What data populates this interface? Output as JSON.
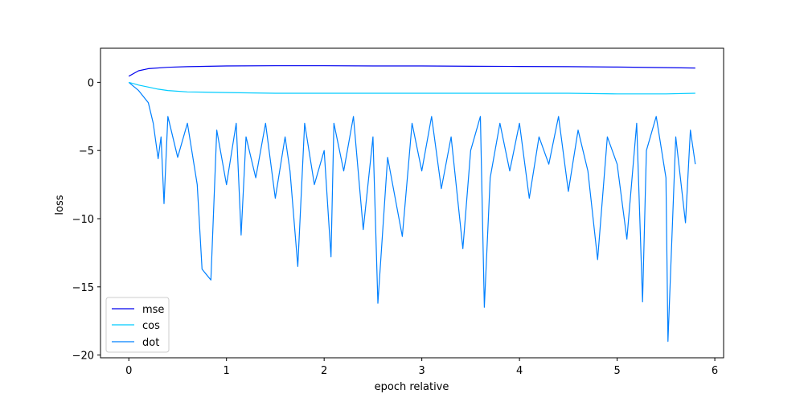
{
  "chart_data": {
    "type": "line",
    "title": "",
    "xlabel": "epoch relative",
    "ylabel": "loss",
    "xlim": [
      -0.29,
      6.09
    ],
    "ylim": [
      -20.2,
      2.5
    ],
    "xticks": [
      0,
      1,
      2,
      3,
      4,
      5,
      6
    ],
    "yticks": [
      0,
      -5,
      -10,
      -15,
      -20
    ],
    "xtick_labels": [
      "0",
      "1",
      "2",
      "3",
      "4",
      "5",
      "6"
    ],
    "ytick_labels": [
      "0",
      "−5",
      "−10",
      "−15",
      "−20"
    ],
    "grid": false,
    "legend": {
      "position": "lower-left"
    },
    "series": [
      {
        "name": "mse",
        "color": "#0000ee",
        "x": [
          0.0,
          0.05,
          0.1,
          0.2,
          0.4,
          0.6,
          1.0,
          1.5,
          2.0,
          2.5,
          3.0,
          3.5,
          4.0,
          4.5,
          5.0,
          5.5,
          5.8
        ],
        "values": [
          0.45,
          0.65,
          0.85,
          1.0,
          1.1,
          1.15,
          1.2,
          1.22,
          1.22,
          1.2,
          1.2,
          1.18,
          1.17,
          1.15,
          1.12,
          1.08,
          1.05
        ]
      },
      {
        "name": "cos",
        "color": "#00ccff",
        "x": [
          0.0,
          0.05,
          0.1,
          0.2,
          0.3,
          0.4,
          0.6,
          1.0,
          1.5,
          2.0,
          2.5,
          3.0,
          3.5,
          4.0,
          4.5,
          5.0,
          5.5,
          5.8
        ],
        "values": [
          0.0,
          -0.1,
          -0.2,
          -0.35,
          -0.5,
          -0.6,
          -0.7,
          -0.75,
          -0.8,
          -0.8,
          -0.8,
          -0.8,
          -0.8,
          -0.8,
          -0.8,
          -0.85,
          -0.85,
          -0.8
        ]
      },
      {
        "name": "dot",
        "color": "#0080ff",
        "x": [
          0.0,
          0.1,
          0.2,
          0.25,
          0.3,
          0.33,
          0.36,
          0.4,
          0.5,
          0.6,
          0.7,
          0.75,
          0.84,
          0.9,
          1.0,
          1.1,
          1.15,
          1.2,
          1.3,
          1.4,
          1.5,
          1.6,
          1.65,
          1.73,
          1.8,
          1.9,
          2.0,
          2.07,
          2.1,
          2.2,
          2.3,
          2.4,
          2.5,
          2.55,
          2.65,
          2.8,
          2.9,
          3.0,
          3.1,
          3.2,
          3.3,
          3.42,
          3.5,
          3.6,
          3.64,
          3.7,
          3.8,
          3.9,
          4.0,
          4.1,
          4.2,
          4.3,
          4.4,
          4.5,
          4.6,
          4.7,
          4.8,
          4.9,
          5.0,
          5.1,
          5.2,
          5.26,
          5.3,
          5.4,
          5.5,
          5.52,
          5.6,
          5.7,
          5.75,
          5.8
        ],
        "values": [
          0.0,
          -0.6,
          -1.5,
          -3.0,
          -5.6,
          -4.0,
          -8.9,
          -2.5,
          -5.5,
          -3.0,
          -7.5,
          -13.7,
          -14.5,
          -3.5,
          -7.5,
          -3.0,
          -11.2,
          -4.0,
          -7.0,
          -3.0,
          -8.5,
          -4.0,
          -6.5,
          -13.5,
          -3.0,
          -7.5,
          -5.0,
          -12.8,
          -3.0,
          -6.5,
          -2.5,
          -10.8,
          -4.0,
          -16.2,
          -5.5,
          -11.3,
          -3.0,
          -6.5,
          -2.5,
          -7.8,
          -4.0,
          -12.2,
          -5.0,
          -2.5,
          -16.5,
          -7.0,
          -3.0,
          -6.5,
          -3.0,
          -8.5,
          -4.0,
          -6.0,
          -2.5,
          -8.0,
          -3.5,
          -6.5,
          -13.0,
          -4.0,
          -6.0,
          -11.5,
          -3.0,
          -16.1,
          -5.0,
          -2.5,
          -7.0,
          -19.0,
          -4.0,
          -10.3,
          -3.5,
          -6.0
        ]
      }
    ]
  }
}
